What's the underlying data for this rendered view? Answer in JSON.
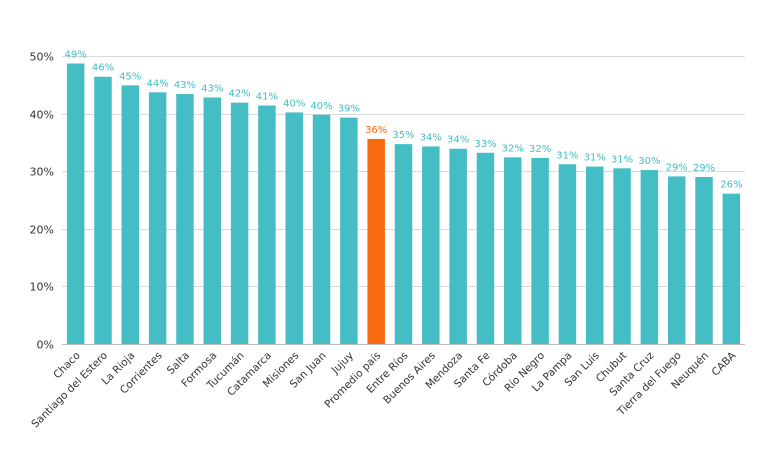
{
  "chart_data": {
    "type": "bar",
    "title": "",
    "xlabel": "",
    "ylabel": "",
    "ylim": [
      0,
      50
    ],
    "yticks": [
      "0%",
      "10%",
      "20%",
      "30%",
      "40%",
      "50%"
    ],
    "ytick_values": [
      0,
      10,
      20,
      30,
      40,
      50
    ],
    "grid": true,
    "legend": "none",
    "bar_color": "#45bdc5",
    "highlight_color": "#f96b10",
    "highlight_category": "Promedio país",
    "categories": [
      "Chaco",
      "Santiago del Estero",
      "La Rioja",
      "Corrientes",
      "Salta",
      "Formosa",
      "Tucumán",
      "Catamarca",
      "Misiones",
      "San Juan",
      "Jujuy",
      "Promedio país",
      "Entre Ríos",
      "Buenos Aires",
      "Mendoza",
      "Santa Fe",
      "Córdoba",
      "Río Negro",
      "La Pampa",
      "San Luis",
      "Chubut",
      "Santa Cruz",
      "Tierra del Fuego",
      "Neuquén",
      "CABA"
    ],
    "values": [
      48.7,
      46.4,
      44.9,
      43.7,
      43.4,
      42.8,
      41.9,
      41.4,
      40.2,
      39.8,
      39.3,
      35.6,
      34.7,
      34.3,
      33.9,
      33.2,
      32.4,
      32.3,
      31.2,
      30.8,
      30.5,
      30.2,
      29.1,
      29.0,
      26.1
    ],
    "labels": [
      "49%",
      "46%",
      "45%",
      "44%",
      "43%",
      "43%",
      "42%",
      "41%",
      "40%",
      "40%",
      "39%",
      "36%",
      "35%",
      "34%",
      "34%",
      "33%",
      "32%",
      "32%",
      "31%",
      "31%",
      "31%",
      "30%",
      "29%",
      "29%",
      "26%"
    ]
  }
}
